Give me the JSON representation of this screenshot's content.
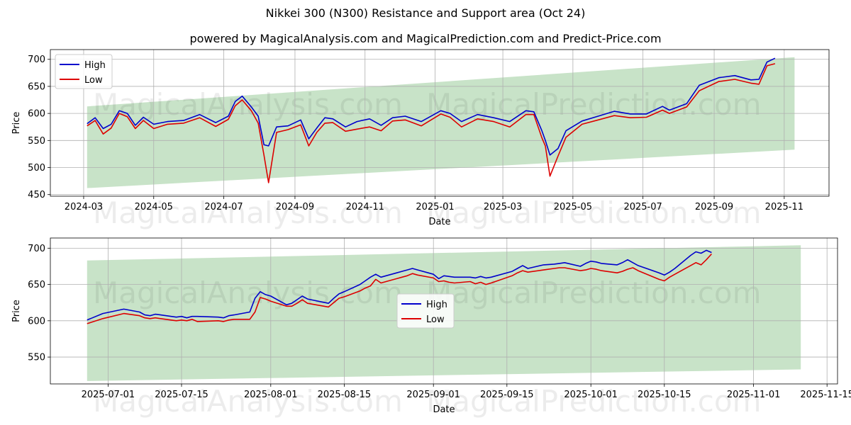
{
  "title": "Nikkei 300 (N300) Resistance and Support area (Oct 24)",
  "subtitle": "powered by MagicalAnalysis.com and MagicalPrediction.com and Predict-Price.com",
  "watermarks": [
    "MagicalAnalysis.com",
    "MagicalPrediction.com"
  ],
  "colors": {
    "high": "#0000cc",
    "low": "#dd0000",
    "band": "#c8e3c8",
    "grid": "#b0b0b0"
  },
  "chart_data": [
    {
      "type": "line",
      "xlabel": "Date",
      "ylabel": "Price",
      "xlim": [
        "2024-02-01",
        "2025-12-10"
      ],
      "ylim": [
        447,
        718
      ],
      "xticks": [
        "2024-03",
        "2024-05",
        "2024-07",
        "2024-09",
        "2024-11",
        "2025-01",
        "2025-03",
        "2025-05",
        "2025-07",
        "2025-09",
        "2025-11"
      ],
      "yticks": [
        450,
        500,
        550,
        600,
        650,
        700
      ],
      "grid": true,
      "legend_position": "upper-left",
      "band": {
        "x": [
          "2024-03-04",
          "2025-11-10"
        ],
        "upper": [
          613,
          704
        ],
        "lower": [
          462,
          533
        ]
      },
      "x": [
        "2024-03-04",
        "2024-03-11",
        "2024-03-18",
        "2024-03-25",
        "2024-04-01",
        "2024-04-08",
        "2024-04-15",
        "2024-04-22",
        "2024-05-01",
        "2024-05-13",
        "2024-05-27",
        "2024-06-10",
        "2024-06-24",
        "2024-07-05",
        "2024-07-11",
        "2024-07-17",
        "2024-07-25",
        "2024-07-31",
        "2024-08-05",
        "2024-08-09",
        "2024-08-16",
        "2024-08-26",
        "2024-09-06",
        "2024-09-13",
        "2024-09-20",
        "2024-09-27",
        "2024-10-04",
        "2024-10-15",
        "2024-10-25",
        "2024-11-05",
        "2024-11-15",
        "2024-11-25",
        "2024-12-06",
        "2024-12-20",
        "2025-01-06",
        "2025-01-14",
        "2025-01-24",
        "2025-02-07",
        "2025-02-21",
        "2025-03-07",
        "2025-03-21",
        "2025-03-28",
        "2025-04-04",
        "2025-04-07",
        "2025-04-11",
        "2025-04-18",
        "2025-04-25",
        "2025-05-09",
        "2025-05-23",
        "2025-06-06",
        "2025-06-20",
        "2025-07-04",
        "2025-07-18",
        "2025-07-24",
        "2025-08-08",
        "2025-08-19",
        "2025-09-05",
        "2025-09-19",
        "2025-10-03",
        "2025-10-10",
        "2025-10-17",
        "2025-10-24"
      ],
      "series": [
        {
          "name": "High",
          "values": [
            581,
            592,
            572,
            580,
            605,
            600,
            578,
            593,
            580,
            585,
            587,
            598,
            583,
            595,
            622,
            632,
            612,
            595,
            542,
            540,
            575,
            577,
            588,
            553,
            573,
            592,
            590,
            575,
            585,
            590,
            578,
            592,
            595,
            585,
            605,
            600,
            585,
            598,
            592,
            585,
            605,
            603,
            568,
            550,
            523,
            535,
            568,
            586,
            595,
            604,
            599,
            599,
            613,
            606,
            618,
            652,
            666,
            670,
            662,
            663,
            695,
            702
          ]
        },
        {
          "name": "Low",
          "values": [
            577,
            587,
            562,
            573,
            600,
            594,
            572,
            587,
            572,
            580,
            582,
            592,
            576,
            589,
            614,
            625,
            605,
            582,
            523,
            472,
            565,
            570,
            579,
            540,
            565,
            582,
            583,
            567,
            571,
            575,
            568,
            586,
            588,
            577,
            599,
            593,
            575,
            590,
            585,
            575,
            598,
            598,
            555,
            540,
            484,
            521,
            556,
            580,
            588,
            596,
            592,
            593,
            606,
            600,
            612,
            642,
            659,
            663,
            656,
            654,
            688,
            692
          ]
        }
      ]
    },
    {
      "type": "line",
      "xlabel": "Date",
      "ylabel": "Price",
      "xlim": [
        "2025-06-20",
        "2025-11-17"
      ],
      "ylim": [
        513,
        714
      ],
      "xticks": [
        "2025-07-01",
        "2025-07-15",
        "2025-08-01",
        "2025-08-15",
        "2025-09-01",
        "2025-09-15",
        "2025-10-01",
        "2025-10-15",
        "2025-11-01",
        "2025-11-15"
      ],
      "yticks": [
        550,
        600,
        650,
        700
      ],
      "grid": true,
      "legend_position": "center",
      "band": {
        "x": [
          "2025-06-27",
          "2025-11-10"
        ],
        "upper": [
          683,
          704
        ],
        "lower": [
          517,
          533
        ]
      },
      "x": [
        "2025-06-27",
        "2025-06-30",
        "2025-07-04",
        "2025-07-07",
        "2025-07-08",
        "2025-07-09",
        "2025-07-10",
        "2025-07-11",
        "2025-07-14",
        "2025-07-15",
        "2025-07-16",
        "2025-07-17",
        "2025-07-18",
        "2025-07-22",
        "2025-07-23",
        "2025-07-24",
        "2025-07-25",
        "2025-07-28",
        "2025-07-29",
        "2025-07-30",
        "2025-07-31",
        "2025-08-01",
        "2025-08-04",
        "2025-08-05",
        "2025-08-06",
        "2025-08-07",
        "2025-08-08",
        "2025-08-12",
        "2025-08-13",
        "2025-08-14",
        "2025-08-15",
        "2025-08-18",
        "2025-08-19",
        "2025-08-20",
        "2025-08-21",
        "2025-08-22",
        "2025-08-25",
        "2025-08-26",
        "2025-08-27",
        "2025-08-28",
        "2025-08-29",
        "2025-09-01",
        "2025-09-02",
        "2025-09-03",
        "2025-09-04",
        "2025-09-05",
        "2025-09-08",
        "2025-09-09",
        "2025-09-10",
        "2025-09-11",
        "2025-09-12",
        "2025-09-16",
        "2025-09-17",
        "2025-09-18",
        "2025-09-19",
        "2025-09-22",
        "2025-09-24",
        "2025-09-25",
        "2025-09-26",
        "2025-09-29",
        "2025-09-30",
        "2025-10-01",
        "2025-10-02",
        "2025-10-03",
        "2025-10-06",
        "2025-10-07",
        "2025-10-08",
        "2025-10-09",
        "2025-10-10",
        "2025-10-14",
        "2025-10-15",
        "2025-10-16",
        "2025-10-17",
        "2025-10-20",
        "2025-10-21",
        "2025-10-22",
        "2025-10-23",
        "2025-10-24"
      ],
      "series": [
        {
          "name": "High",
          "values": [
            601,
            610,
            616,
            612,
            608,
            607,
            609,
            608,
            605,
            606,
            604,
            606,
            606,
            605,
            604,
            607,
            608,
            612,
            631,
            640,
            636,
            634,
            622,
            624,
            629,
            634,
            630,
            624,
            631,
            637,
            640,
            650,
            655,
            660,
            664,
            660,
            666,
            668,
            670,
            672,
            670,
            664,
            658,
            662,
            661,
            660,
            660,
            659,
            661,
            659,
            660,
            668,
            672,
            676,
            672,
            677,
            678,
            679,
            680,
            675,
            679,
            682,
            681,
            679,
            677,
            680,
            684,
            680,
            676,
            666,
            663,
            667,
            672,
            690,
            695,
            693,
            697,
            694
          ]
        },
        {
          "name": "Low",
          "values": [
            596,
            603,
            610,
            607,
            604,
            603,
            604,
            603,
            600,
            601,
            600,
            602,
            599,
            600,
            599,
            601,
            602,
            602,
            612,
            632,
            630,
            627,
            620,
            620,
            624,
            629,
            624,
            619,
            625,
            631,
            633,
            641,
            645,
            648,
            657,
            652,
            658,
            660,
            662,
            665,
            663,
            659,
            654,
            655,
            653,
            652,
            654,
            651,
            653,
            650,
            652,
            662,
            666,
            669,
            667,
            670,
            672,
            673,
            673,
            669,
            670,
            672,
            671,
            669,
            666,
            668,
            671,
            673,
            669,
            657,
            655,
            660,
            664,
            676,
            680,
            677,
            684,
            692
          ]
        }
      ]
    }
  ]
}
